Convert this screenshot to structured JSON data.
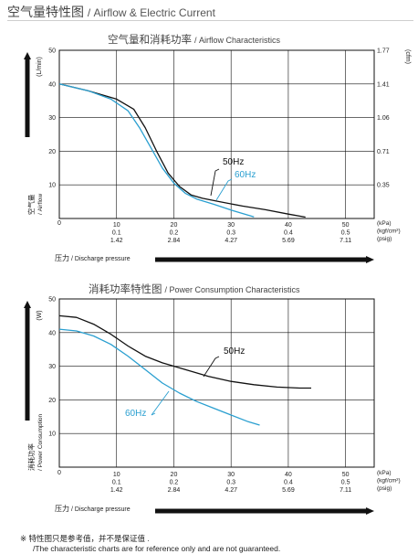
{
  "page": {
    "title_cn": "空气量特性图",
    "title_en": "/ Airflow & Electric Current"
  },
  "chart_data": [
    {
      "type": "line",
      "title_cn": "空气量和消耗功率",
      "title_en": "/ Airflow Characteristics",
      "ylabel_left": "(L/min)",
      "ylabel_right": "(cfm)",
      "side_label_cn": "空气量",
      "side_label_en": "/ Airflow",
      "xlabel_cn": "压力",
      "xlabel_en": "/ Discharge pressure",
      "x_unit_rows": [
        "(kPa)",
        "(kgf/cm²)",
        "(psig)"
      ],
      "xlim": [
        0,
        55
      ],
      "ylim": [
        0,
        50
      ],
      "x_ticks": [
        10,
        20,
        30,
        40,
        50
      ],
      "x_tick_rows": [
        [
          "10",
          "20",
          "30",
          "40",
          "50"
        ],
        [
          "0.1",
          "0.2",
          "0.3",
          "0.4",
          "0.5"
        ],
        [
          "1.42",
          "2.84",
          "4.27",
          "5.69",
          "7.11"
        ]
      ],
      "x_zero_label": "0",
      "y_ticks": [
        10,
        20,
        30,
        40,
        50
      ],
      "y_tick_labels": [
        "10",
        "20",
        "30",
        "40",
        "50"
      ],
      "y2_ticks": [
        10,
        20,
        30,
        40,
        50
      ],
      "y2_tick_labels": [
        "0.35",
        "0.71",
        "1.06",
        "1.41",
        "1.77"
      ],
      "grid": true,
      "series": [
        {
          "name": "50Hz",
          "color": "#111111",
          "x": [
            0,
            5,
            10,
            13,
            15,
            17,
            19,
            21,
            23,
            25,
            28,
            32,
            36,
            40,
            43
          ],
          "y": [
            40,
            38,
            35.5,
            32.5,
            27,
            20,
            13.5,
            9.5,
            7,
            6,
            5,
            3.7,
            2.6,
            1.3,
            0.4
          ]
        },
        {
          "name": "60Hz",
          "color": "#2a9fd0",
          "x": [
            0,
            5,
            9,
            12,
            14,
            16,
            18,
            20,
            22,
            24,
            27,
            30,
            34
          ],
          "y": [
            40,
            38,
            35.5,
            32,
            27,
            21,
            15,
            10.5,
            7.5,
            5.8,
            4.2,
            2.5,
            0.5
          ]
        }
      ]
    },
    {
      "type": "line",
      "title_cn": "消耗功率特性图",
      "title_en": "/ Power Consumption Characteristics",
      "ylabel_left": "(W)",
      "side_label_cn": "消耗功率",
      "side_label_en": "/ Power Consumption",
      "xlabel_cn": "压力",
      "xlabel_en": "/ Discharge pressure",
      "x_unit_rows": [
        "(kPa)",
        "(kgf/cm²)",
        "(psig)"
      ],
      "xlim": [
        0,
        55
      ],
      "ylim": [
        0,
        50
      ],
      "x_ticks": [
        10,
        20,
        30,
        40,
        50
      ],
      "x_tick_rows": [
        [
          "10",
          "20",
          "30",
          "40",
          "50"
        ],
        [
          "0.1",
          "0.2",
          "0.3",
          "0.4",
          "0.5"
        ],
        [
          "1.42",
          "2.84",
          "4.27",
          "5.69",
          "7.11"
        ]
      ],
      "x_zero_label": "0",
      "y_ticks": [
        10,
        20,
        30,
        40,
        50
      ],
      "y_tick_labels": [
        "10",
        "20",
        "30",
        "40",
        "50"
      ],
      "grid": true,
      "series": [
        {
          "name": "50Hz",
          "color": "#111111",
          "x": [
            0,
            3,
            6,
            9,
            12,
            15,
            18,
            22,
            26,
            30,
            34,
            38,
            42,
            44
          ],
          "y": [
            45,
            44.5,
            42.5,
            39.5,
            36,
            33,
            31,
            29,
            27,
            25.5,
            24.5,
            23.8,
            23.5,
            23.5
          ]
        },
        {
          "name": "60Hz",
          "color": "#2a9fd0",
          "x": [
            0,
            3,
            6,
            9,
            12,
            15,
            18,
            21,
            24,
            27,
            30,
            33,
            35
          ],
          "y": [
            41,
            40.5,
            39,
            36.5,
            33,
            29,
            25,
            22,
            19.5,
            17.5,
            15.5,
            13.5,
            12.5
          ]
        }
      ]
    }
  ],
  "footnote": {
    "line1": "※ 特性图只是参考值，并不是保证值 .",
    "line2": "/The characteristic charts are for reference only and are not guaranteed."
  }
}
